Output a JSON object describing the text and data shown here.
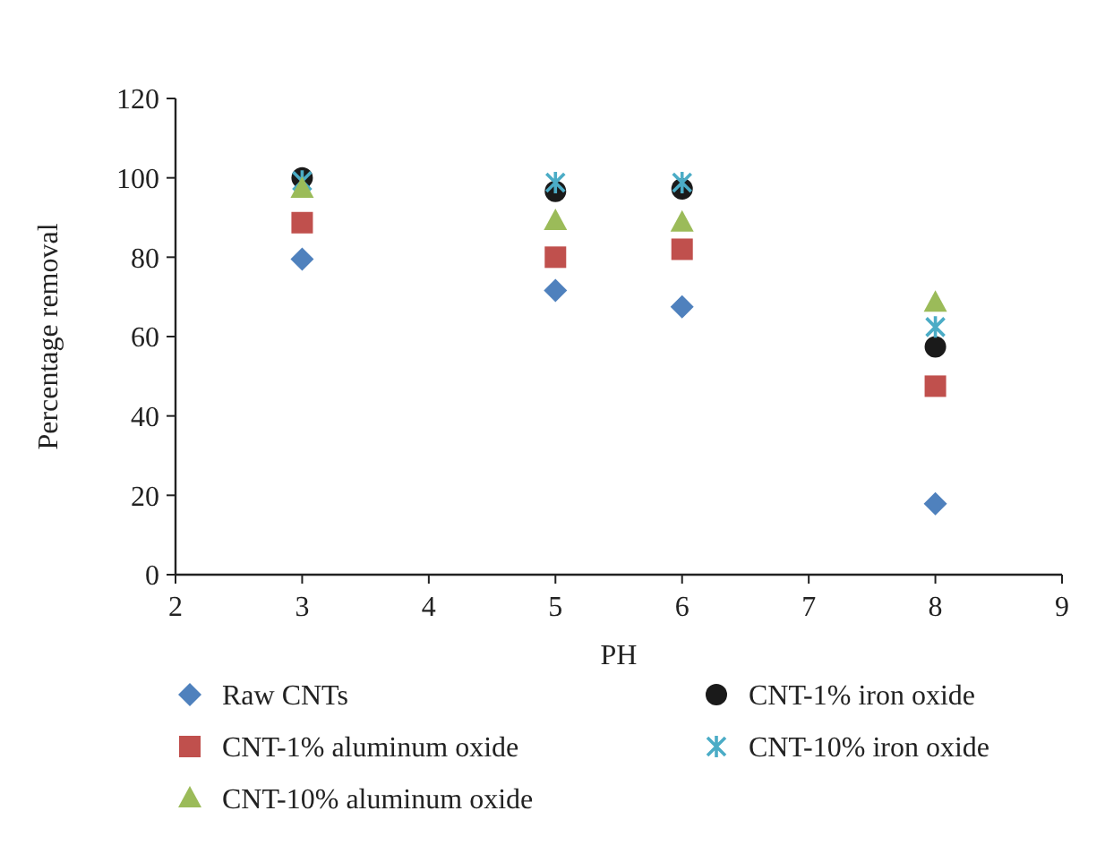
{
  "chart_data": {
    "type": "scatter",
    "xlabel": "PH",
    "ylabel": "Percentage removal",
    "x": [
      3,
      5,
      6,
      8
    ],
    "xlim": [
      2,
      9
    ],
    "xticks": [
      2,
      3,
      4,
      5,
      6,
      7,
      8,
      9
    ],
    "ylim": [
      0,
      120
    ],
    "yticks": [
      0,
      20,
      40,
      60,
      80,
      100,
      120
    ],
    "grid": false,
    "legend": "bottom",
    "series": [
      {
        "name": "Raw CNTs",
        "color": "#4f81bd",
        "marker": "diamond",
        "values": [
          79.5,
          71.6,
          67.5,
          17.9
        ]
      },
      {
        "name": "CNT-1% iron oxide",
        "color": "#1a1a1a",
        "marker": "circle",
        "values": [
          100,
          96.6,
          97.2,
          57.4
        ]
      },
      {
        "name": "CNT-1% aluminum oxide",
        "color": "#c0504d",
        "marker": "square",
        "values": [
          88.7,
          80,
          82,
          47.5
        ]
      },
      {
        "name": "CNT-10% iron oxide",
        "color": "#4bacc6",
        "marker": "cross",
        "values": [
          99.2,
          98.8,
          98.8,
          62.4
        ]
      },
      {
        "name": "CNT-10% aluminum oxide",
        "color": "#9bbb59",
        "marker": "triangle",
        "values": [
          97.2,
          89.1,
          88.7,
          68.5
        ]
      }
    ]
  }
}
